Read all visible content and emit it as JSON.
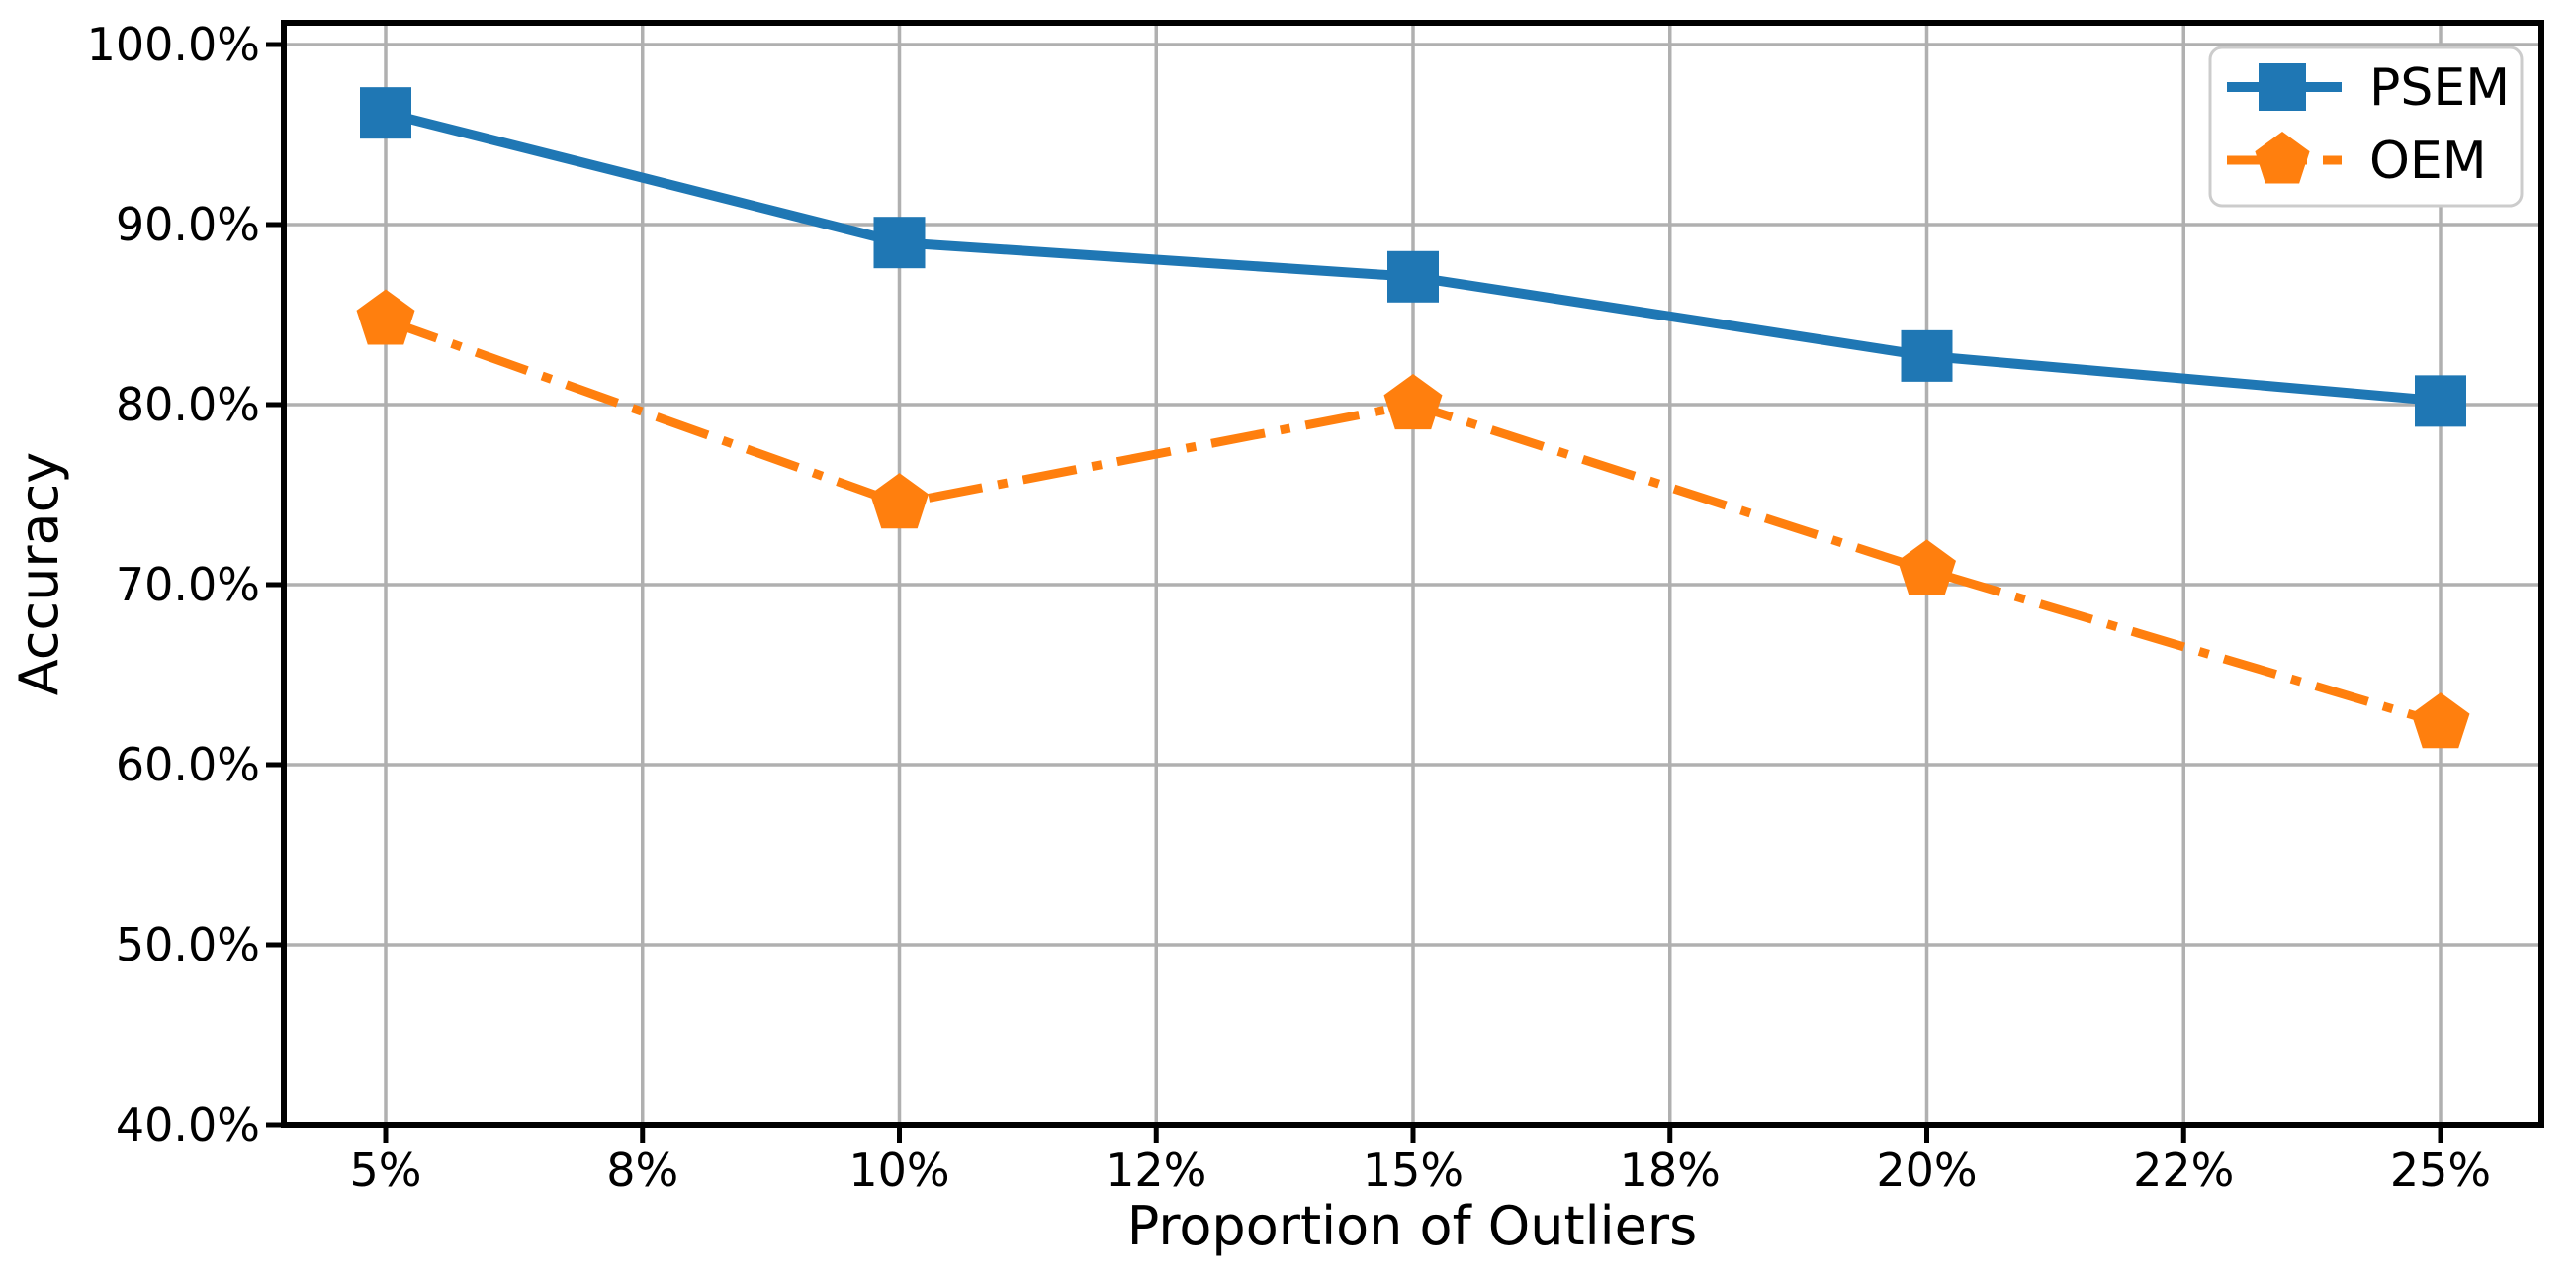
{
  "figure": {
    "background": "#ffffff"
  },
  "chart_data": {
    "type": "line",
    "title": "",
    "xlabel": "Proportion of Outliers",
    "ylabel": "Accuracy",
    "x_tick_labels": [
      "5%",
      "8%",
      "10%",
      "12%",
      "15%",
      "18%",
      "20%",
      "22%",
      "25%"
    ],
    "y_ticks": [
      40,
      50,
      60,
      70,
      80,
      90,
      100
    ],
    "y_tick_labels": [
      "40.0%",
      "50.0%",
      "60.0%",
      "70.0%",
      "80.0%",
      "90.0%",
      "100.0%"
    ],
    "ylim": [
      40,
      101.2
    ],
    "grid": true,
    "grid_color": "#b0b0b0",
    "legend_position": "upper right",
    "legend_border_color": "#cccccc",
    "x": [
      "5%",
      "10%",
      "15%",
      "20%",
      "25%"
    ],
    "x_values_pct": [
      5,
      10,
      15,
      20,
      25
    ],
    "x_tick_indices": [
      0,
      2,
      4,
      6,
      8
    ],
    "series": [
      {
        "name": "PSEM",
        "color": "#1f77b4",
        "line_style": "solid",
        "marker": "square",
        "values": [
          96.2,
          89.0,
          87.1,
          82.7,
          80.2
        ]
      },
      {
        "name": "OEM",
        "color": "#ff7f0e",
        "line_style": "dashdot",
        "marker": "pentagon",
        "values": [
          84.7,
          74.5,
          80.0,
          70.8,
          62.3
        ]
      }
    ]
  }
}
